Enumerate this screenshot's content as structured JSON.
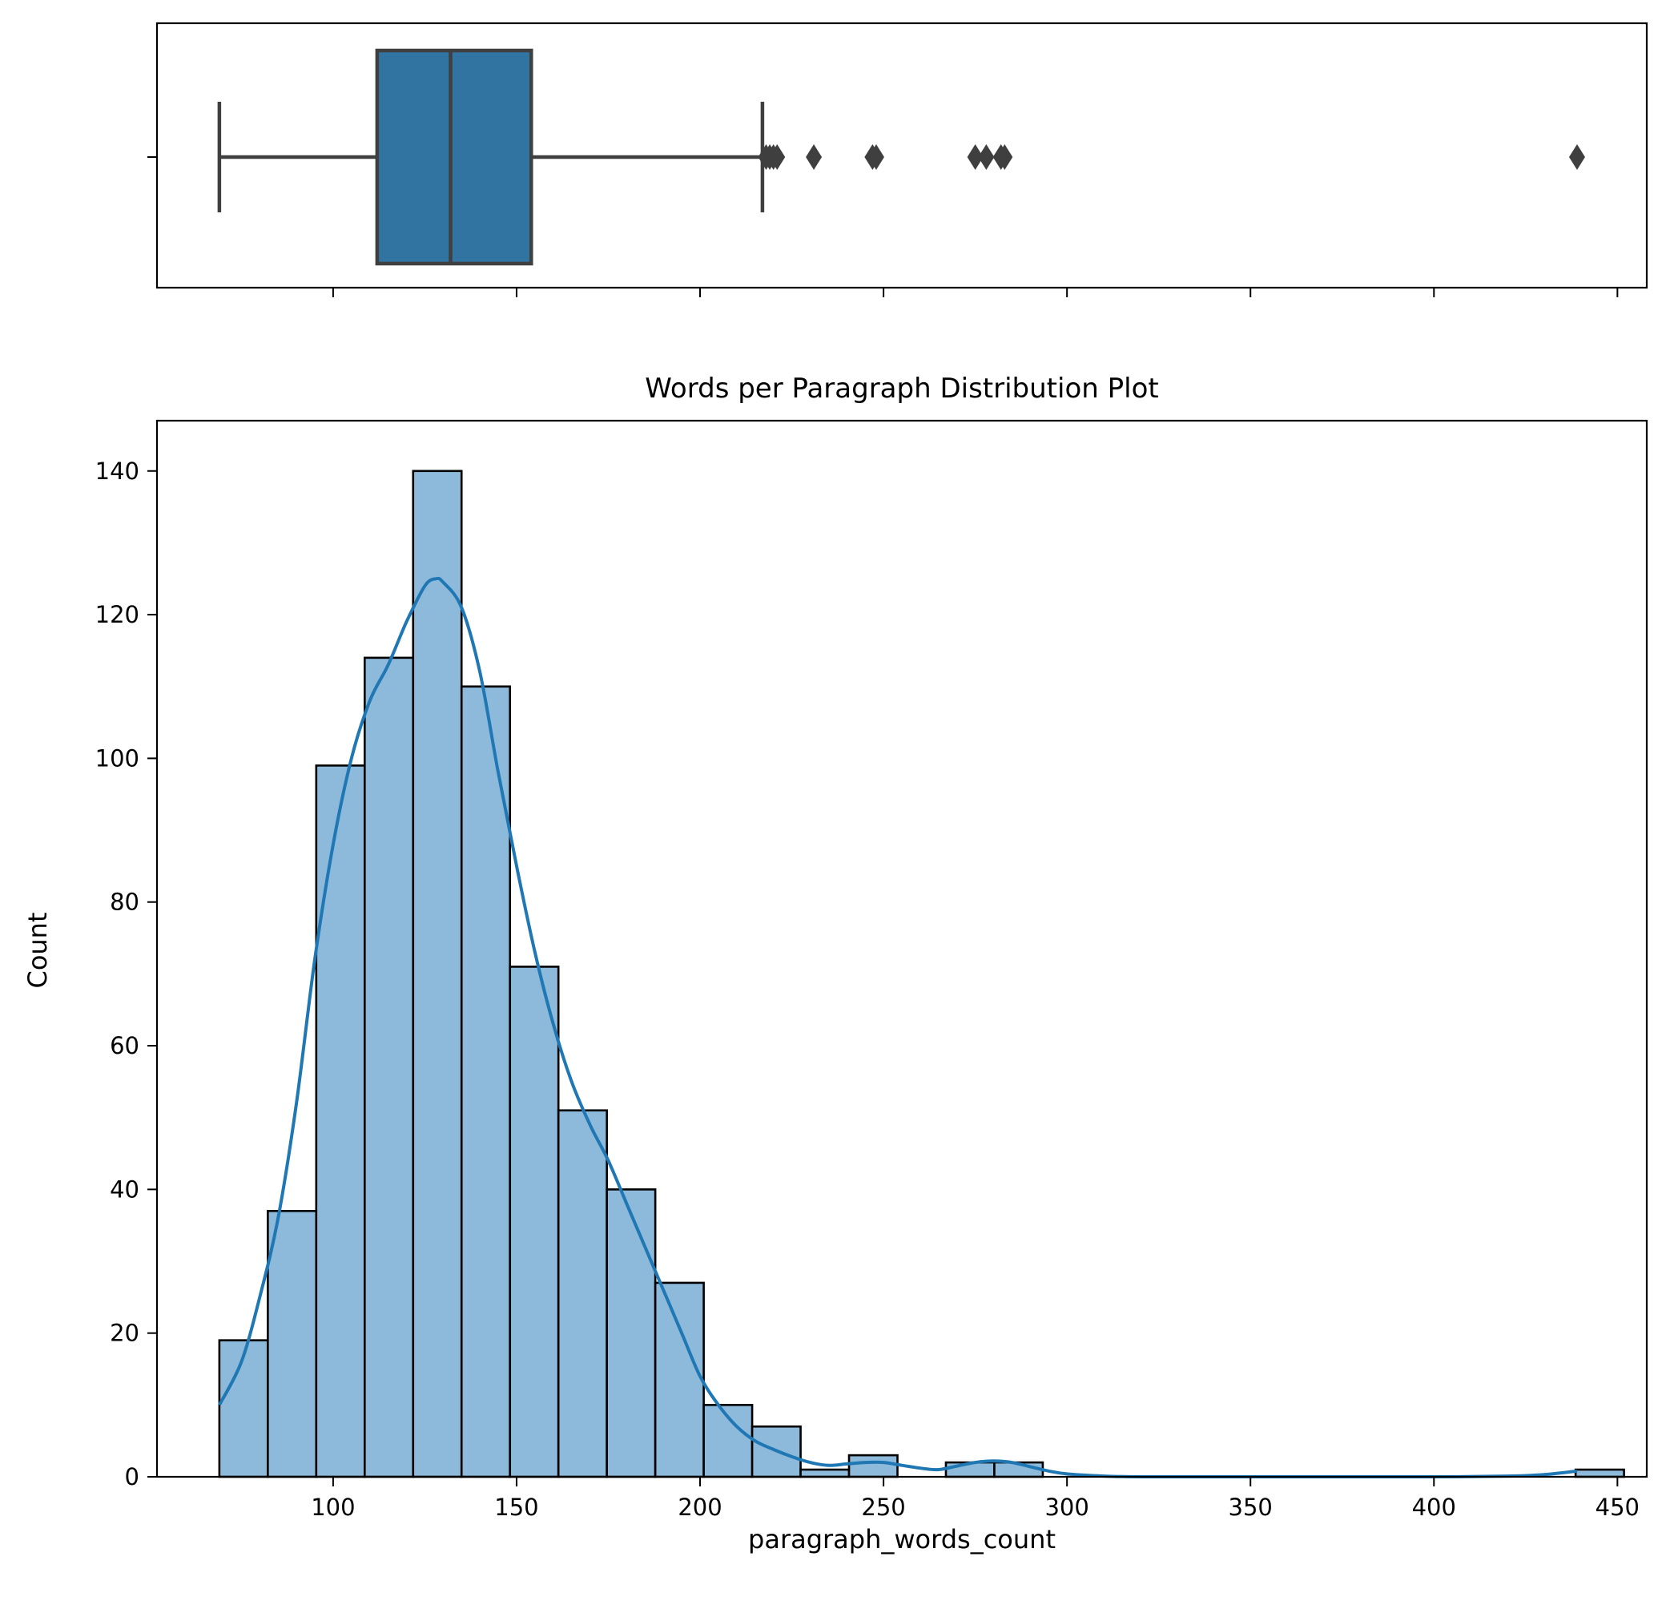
{
  "chart_data": [
    {
      "type": "boxplot",
      "orientation": "horizontal",
      "whisker_low": 69,
      "q1": 112,
      "median": 132,
      "q3": 154,
      "whisker_high": 217,
      "outliers": [
        218,
        219,
        220,
        221,
        231,
        247,
        248,
        275,
        278,
        282,
        283,
        439
      ],
      "xlim": [
        52,
        458
      ],
      "xticks": [
        100,
        150,
        200,
        250,
        300,
        350,
        400,
        450
      ],
      "colors": {
        "box": "#3274a1",
        "lines": "#3f3f3f"
      }
    },
    {
      "type": "histogram",
      "title": "Words per Paragraph Distribution Plot",
      "xlabel": "paragraph_words_count",
      "ylabel": "Count",
      "bin_start": 69,
      "bin_width": 13.2,
      "counts": [
        19,
        37,
        99,
        114,
        140,
        110,
        71,
        51,
        40,
        27,
        10,
        7,
        1,
        3,
        0,
        2,
        2,
        0,
        0,
        0,
        0,
        0,
        0,
        0,
        0,
        0,
        0,
        0,
        1
      ],
      "xlim": [
        52,
        458
      ],
      "ylim": [
        0,
        147
      ],
      "xticks": [
        100,
        150,
        200,
        250,
        300,
        350,
        400,
        450
      ],
      "yticks": [
        0,
        20,
        40,
        60,
        80,
        100,
        120,
        140
      ],
      "kde": {
        "x": [
          69,
          75,
          80,
          85,
          90,
          95,
          100,
          105,
          110,
          115,
          120,
          125,
          128,
          130,
          135,
          140,
          145,
          150,
          155,
          160,
          165,
          170,
          175,
          180,
          185,
          190,
          195,
          200,
          205,
          210,
          215,
          220,
          225,
          230,
          235,
          240,
          245,
          250,
          255,
          260,
          265,
          270,
          275,
          280,
          285,
          290,
          295,
          300,
          310,
          320,
          340,
          360,
          380,
          400,
          420,
          430,
          439
        ],
        "y": [
          10,
          16,
          25,
          36,
          52,
          72,
          88,
          100,
          108,
          113,
          119,
          124,
          125,
          124.5,
          121,
          112,
          98,
          85,
          73,
          63,
          55,
          49,
          44,
          38,
          32,
          26,
          20,
          14,
          10,
          7,
          5,
          3.8,
          2.8,
          2.0,
          1.6,
          1.8,
          2.0,
          2.0,
          1.6,
          1.2,
          1.0,
          1.5,
          2.0,
          2.2,
          2.0,
          1.4,
          0.8,
          0.4,
          0.1,
          0,
          0,
          0,
          0,
          0,
          0.1,
          0.3,
          0.8
        ]
      },
      "colors": {
        "bar_fill": "#8db9da",
        "bar_edge": "#000000",
        "kde_line": "#1f77b4"
      }
    }
  ]
}
